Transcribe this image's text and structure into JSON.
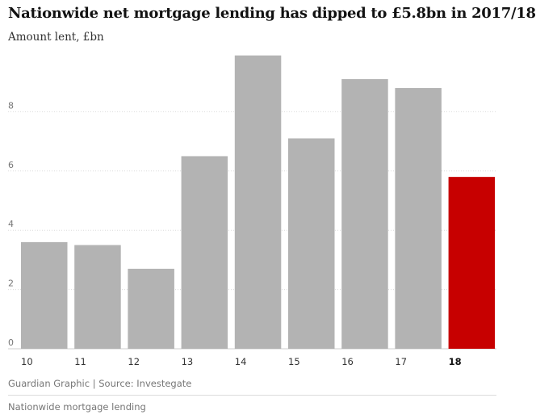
{
  "header": {
    "title": "Nationwide net mortgage lending has dipped to £5.8bn in 2017/18",
    "subtitle": "Amount lent, £bn"
  },
  "footer": {
    "source": "Guardian Graphic | Source: Investegate",
    "caption": "Nationwide mortgage lending"
  },
  "colors": {
    "bar": "#b3b3b3",
    "highlight": "#c70000",
    "grid": "#dcdcdc",
    "tick": "#767676"
  },
  "chart_data": {
    "type": "bar",
    "categories": [
      "10",
      "11",
      "12",
      "13",
      "14",
      "15",
      "16",
      "17",
      "18"
    ],
    "values": [
      3.6,
      3.5,
      2.7,
      6.5,
      9.9,
      7.1,
      9.1,
      8.8,
      5.8
    ],
    "highlight_category": "18",
    "ylim": [
      0,
      10
    ],
    "yticks": [
      0,
      2,
      4,
      6,
      8
    ],
    "grid": true
  }
}
